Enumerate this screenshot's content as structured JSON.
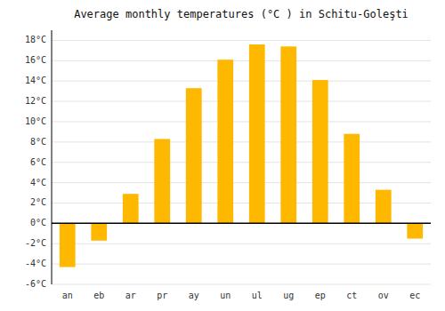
{
  "chart_data": {
    "type": "bar",
    "title": "Average monthly temperatures (°C ) in Schitu-Goleşti",
    "categories": [
      "an",
      "eb",
      "ar",
      "pr",
      "ay",
      "un",
      "ul",
      "ug",
      "ep",
      "ct",
      "ov",
      "ec"
    ],
    "values": [
      -4.3,
      -1.7,
      2.9,
      8.3,
      13.3,
      16.1,
      17.6,
      17.4,
      14.1,
      8.8,
      3.3,
      -1.5
    ],
    "color": "#FFB800",
    "ylim": [
      -6,
      19
    ],
    "yticks": [
      {
        "value": -6,
        "label": "-6°C"
      },
      {
        "value": -4,
        "label": "-4°C"
      },
      {
        "value": -2,
        "label": "-2°C"
      },
      {
        "value": 0,
        "label": "0°C"
      },
      {
        "value": 2,
        "label": "2°C"
      },
      {
        "value": 4,
        "label": "4°C"
      },
      {
        "value": 6,
        "label": "6°C"
      },
      {
        "value": 8,
        "label": "8°C"
      },
      {
        "value": 10,
        "label": "10°C"
      },
      {
        "value": 12,
        "label": "12°C"
      },
      {
        "value": 14,
        "label": "14°C"
      },
      {
        "value": 16,
        "label": "16°C"
      },
      {
        "value": 18,
        "label": "18°C"
      }
    ],
    "grid": true
  }
}
